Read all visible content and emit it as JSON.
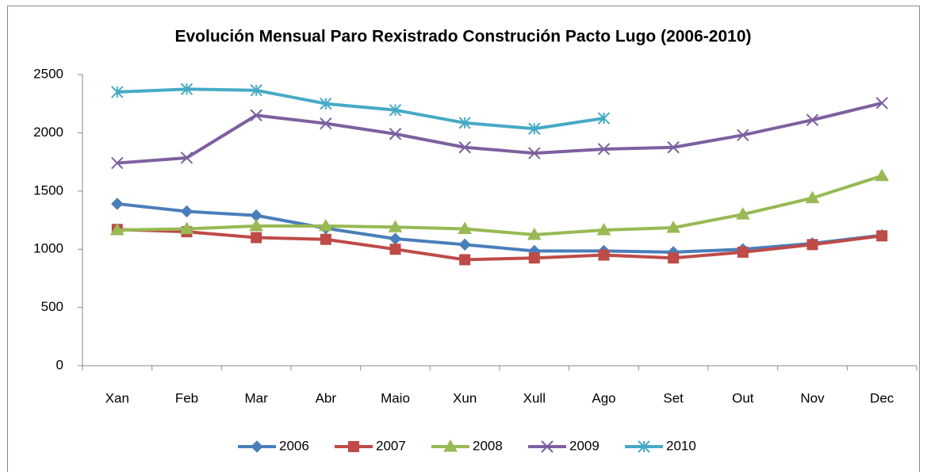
{
  "chart_data": {
    "type": "line",
    "title": "Evolución Mensual Paro Rexistrado Construción Pacto Lugo (2006-2010)",
    "categories": [
      "Xan",
      "Feb",
      "Mar",
      "Abr",
      "Maio",
      "Xun",
      "Xull",
      "Ago",
      "Set",
      "Out",
      "Nov",
      "Dec"
    ],
    "series": [
      {
        "name": "2006",
        "color": "#4a7ebb",
        "marker": "diamond",
        "values": [
          1390,
          1325,
          1290,
          1180,
          1090,
          1040,
          985,
          985,
          975,
          1000,
          1050,
          1120
        ]
      },
      {
        "name": "2007",
        "color": "#be4b48",
        "marker": "square",
        "values": [
          1170,
          1150,
          1100,
          1085,
          1000,
          910,
          925,
          950,
          925,
          975,
          1040,
          1115
        ]
      },
      {
        "name": "2008",
        "color": "#98b954",
        "marker": "triangle",
        "values": [
          1165,
          1175,
          1200,
          1200,
          1190,
          1175,
          1125,
          1165,
          1185,
          1300,
          1440,
          1630
        ]
      },
      {
        "name": "2009",
        "color": "#7d60a0",
        "marker": "x",
        "values": [
          1740,
          1785,
          2150,
          2080,
          1990,
          1875,
          1825,
          1860,
          1875,
          1980,
          2110,
          2255
        ]
      },
      {
        "name": "2010",
        "color": "#46aac5",
        "marker": "star",
        "values": [
          2350,
          2375,
          2365,
          2250,
          2195,
          2085,
          2035,
          2125,
          null,
          null,
          null,
          null
        ]
      }
    ],
    "ylim": [
      0,
      2500
    ],
    "yticks": [
      0,
      500,
      1000,
      1500,
      2000,
      2500
    ],
    "grid": false,
    "legend": "bottom"
  }
}
